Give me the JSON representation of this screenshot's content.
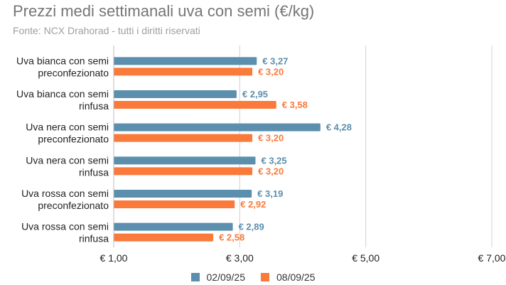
{
  "title": "Prezzi medi settimanali uva con semi (€/kg)",
  "subtitle": "Fonte: NCX Drahorad - tutti i diritti riservati",
  "colors": {
    "series1": "#5b8fad",
    "series2": "#f97a3b",
    "grid": "#d0d0d0",
    "text": "#222222"
  },
  "chart_data": {
    "type": "bar",
    "orientation": "horizontal",
    "categories": [
      [
        "Uva bianca con semi",
        "preconfezionato"
      ],
      [
        "Uva bianca con semi",
        "rinfusa"
      ],
      [
        "Uva nera con semi",
        "preconfezionato"
      ],
      [
        "Uva nera con semi",
        "rinfusa"
      ],
      [
        "Uva rossa con semi",
        "preconfezionato"
      ],
      [
        "Uva rossa con semi",
        "rinfusa"
      ]
    ],
    "series": [
      {
        "name": "02/09/25",
        "values": [
          3.27,
          2.95,
          4.28,
          3.25,
          3.19,
          2.89
        ],
        "labels": [
          "€ 3,27",
          "€ 2,95",
          "€ 4,28",
          "€ 3,25",
          "€ 3,19",
          "€ 2,89"
        ]
      },
      {
        "name": "08/09/25",
        "values": [
          3.2,
          3.58,
          3.2,
          3.2,
          2.92,
          2.58
        ],
        "labels": [
          "€ 3,20",
          "€ 3,58",
          "€ 3,20",
          "€ 3,20",
          "€ 2,92",
          "€ 2,58"
        ]
      }
    ],
    "xlim": [
      1,
      7
    ],
    "xticks": [
      1,
      3,
      5,
      7
    ],
    "xtick_labels": [
      "€ 1,00",
      "€ 3,00",
      "€ 5,00",
      "€ 7,00"
    ],
    "grid": true,
    "legend_position": "bottom"
  }
}
